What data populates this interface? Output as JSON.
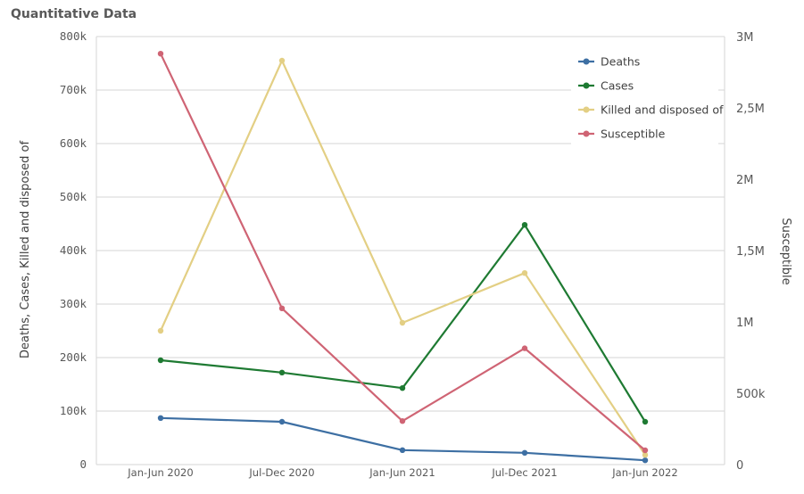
{
  "chart_data": {
    "type": "line",
    "title": "Quantitative Data",
    "categories": [
      "Jan-Jun 2020",
      "Jul-Dec 2020",
      "Jan-Jun 2021",
      "Jul-Dec 2021",
      "Jan-Jun 2022"
    ],
    "ylabel_left": "Deaths, Cases, Killed and disposed of",
    "ylabel_right": "Susceptible",
    "ylim_left": [
      0,
      800000
    ],
    "ylim_right": [
      0,
      3000000
    ],
    "yticks_left": [
      "0",
      "100k",
      "200k",
      "300k",
      "400k",
      "500k",
      "600k",
      "700k",
      "800k"
    ],
    "yticks_right": [
      "0",
      "500k",
      "1M",
      "1,5M",
      "2M",
      "2,5M",
      "3M"
    ],
    "grid": true,
    "legend_position": "top-right",
    "series": [
      {
        "name": "Deaths",
        "axis": "left",
        "color": "#3d6fa3",
        "values": [
          87000,
          80000,
          27000,
          22000,
          8000
        ]
      },
      {
        "name": "Cases",
        "axis": "left",
        "color": "#1e7a32",
        "values": [
          195000,
          172000,
          143000,
          448000,
          80000
        ]
      },
      {
        "name": "Killed and disposed of",
        "axis": "left",
        "color": "#e3cf84",
        "values": [
          250000,
          755000,
          265000,
          358000,
          18000
        ]
      },
      {
        "name": "Susceptible",
        "axis": "right",
        "color": "#cf6474",
        "values": [
          2880000,
          1095000,
          305000,
          815000,
          100000
        ]
      }
    ]
  }
}
